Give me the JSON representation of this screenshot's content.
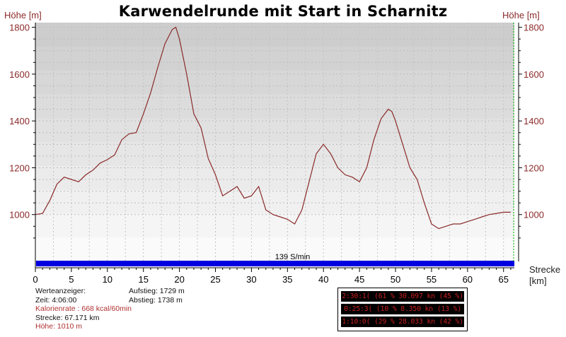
{
  "chart_data": {
    "type": "area",
    "title": "Karwendelrunde mit Start in Scharnitz",
    "ylabel": "Höhe [m]",
    "ylabel_right": "Höhe [m]",
    "xlabel": "Strecke [km]",
    "xlim": [
      0,
      66.5
    ],
    "ylim": [
      800,
      1820
    ],
    "xticks": [
      0,
      5,
      10,
      15,
      20,
      25,
      30,
      35,
      40,
      45,
      50,
      55,
      60,
      65
    ],
    "yticks": [
      1000,
      1200,
      1400,
      1600,
      1800
    ],
    "grid": true,
    "line_color": "#8b2a2a",
    "secondary_marker_color": "#00b000",
    "x": [
      0,
      1,
      2,
      3,
      4,
      5,
      6,
      7,
      8,
      9,
      10,
      11,
      12,
      13,
      14,
      15,
      16,
      17,
      18,
      19,
      19.5,
      20,
      21,
      22,
      23,
      24,
      25,
      26,
      27,
      28,
      29,
      30,
      31,
      32,
      33,
      34,
      35,
      36,
      37,
      38,
      39,
      40,
      41,
      42,
      43,
      44,
      45,
      46,
      47,
      48,
      49,
      49.5,
      50,
      51,
      52,
      53,
      54,
      55,
      56,
      57,
      58,
      59,
      60,
      61,
      62,
      63,
      64,
      65,
      66
    ],
    "y": [
      1000,
      1005,
      1060,
      1130,
      1160,
      1150,
      1140,
      1170,
      1190,
      1220,
      1235,
      1255,
      1320,
      1345,
      1350,
      1430,
      1520,
      1630,
      1730,
      1790,
      1800,
      1750,
      1600,
      1430,
      1370,
      1240,
      1170,
      1080,
      1100,
      1120,
      1070,
      1080,
      1120,
      1020,
      1000,
      990,
      980,
      960,
      1020,
      1140,
      1260,
      1300,
      1260,
      1200,
      1170,
      1160,
      1140,
      1200,
      1320,
      1410,
      1450,
      1440,
      1400,
      1300,
      1200,
      1150,
      1050,
      960,
      940,
      950,
      960,
      960,
      970,
      980,
      990,
      1000,
      1005,
      1010,
      1010
    ]
  },
  "labels": {
    "y_left_unit": "Höhe [m]",
    "y_right_unit": "Höhe [m]",
    "x_unit_line1": "Strecke",
    "x_unit_line2": "[km]",
    "pace_label": "139 S/min"
  },
  "info": {
    "werteanzeiger": "Werteanzeiger:",
    "zeit": "Zeit: 4:06:00",
    "kalorienrate": "Kalorienrate : 668 kcal/60min",
    "strecke": "Strecke: 67.171 km",
    "hoehe": "Höhe: 1010 m",
    "aufstieg": "Aufstieg: 1729 m",
    "abstieg": "Abstieg: 1738 m"
  },
  "splits": [
    "2:30:1( (61 % 30.097 kn  (45 %)",
    "0:25:3( (10 % 8.350 kn  (13 %)",
    "1:10:0( (29 % 28.033 kn  (42 %)"
  ],
  "colors": {
    "axis_text": "#8b2a2a",
    "pace_bar": "#0000e0",
    "split_text": "#c62020"
  }
}
